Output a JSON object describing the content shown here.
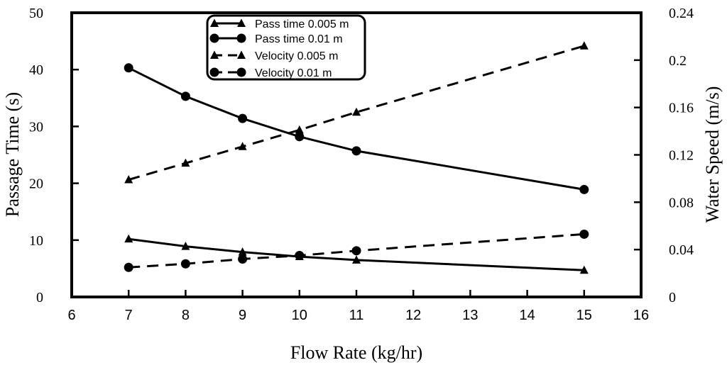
{
  "chart_data": {
    "type": "line",
    "xlabel": "Flow Rate (kg/hr)",
    "ylabel_left": "Passage Time (s)",
    "ylabel_right": "Water Speed (m/s)",
    "xlim": [
      6,
      16
    ],
    "ylim_left": [
      0,
      50
    ],
    "ylim_right": [
      0,
      0.24
    ],
    "x_ticks": [
      "6",
      "7",
      "8",
      "9",
      "10",
      "11",
      "12",
      "13",
      "14",
      "15",
      "16"
    ],
    "y_left_ticks": [
      "0",
      "10",
      "20",
      "30",
      "40",
      "50"
    ],
    "y_right_ticks": [
      "0",
      "0.04",
      "0.08",
      "0.12",
      "0.16",
      "0.2",
      "0.24"
    ],
    "grid": false,
    "legend_position": "top-center",
    "series": [
      {
        "name": "Pass time 0.005 m",
        "axis": "left",
        "marker": "triangle",
        "dash": "solid",
        "x": [
          7,
          8,
          9,
          10,
          11,
          15
        ],
        "values": [
          10.2,
          8.9,
          7.9,
          7.1,
          6.5,
          4.7
        ]
      },
      {
        "name": "Pass time 0.01 m",
        "axis": "left",
        "marker": "circle",
        "dash": "solid",
        "x": [
          7,
          8,
          9,
          10,
          11,
          15
        ],
        "values": [
          40.3,
          35.3,
          31.4,
          28.2,
          25.7,
          18.9
        ]
      },
      {
        "name": "Velocity 0.005 m",
        "axis": "right",
        "marker": "triangle",
        "dash": "dashed",
        "x": [
          7,
          8,
          9,
          10,
          11,
          15
        ],
        "values": [
          0.099,
          0.113,
          0.127,
          0.141,
          0.156,
          0.212
        ]
      },
      {
        "name": "Velocity 0.01 m",
        "axis": "right",
        "marker": "circle",
        "dash": "dashed",
        "x": [
          7,
          8,
          9,
          10,
          11,
          15
        ],
        "values": [
          0.025,
          0.028,
          0.032,
          0.035,
          0.039,
          0.053
        ]
      }
    ]
  }
}
